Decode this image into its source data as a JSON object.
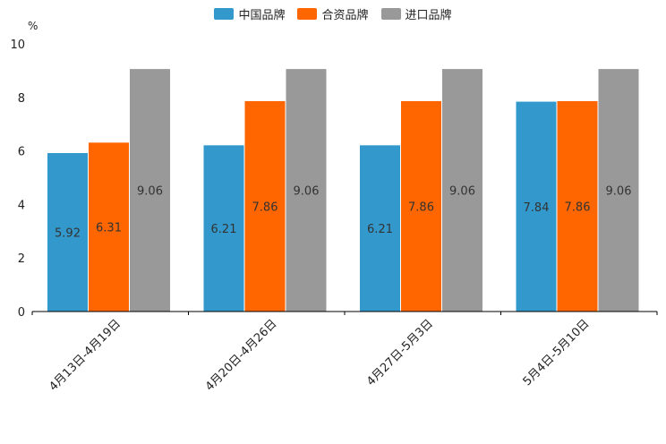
{
  "chart_data": {
    "type": "bar",
    "unit_label": "%",
    "categories": [
      "4月13日-4月19日",
      "4月20日-4月26日",
      "4月27日-5月3日",
      "5月4日-5月10日"
    ],
    "series": [
      {
        "name": "中国品牌",
        "color": "#3399cc",
        "values": [
          5.92,
          6.21,
          6.21,
          7.84
        ]
      },
      {
        "name": "合资品牌",
        "color": "#ff6600",
        "values": [
          6.31,
          7.86,
          7.86,
          7.86
        ]
      },
      {
        "name": "进口品牌",
        "color": "#999999",
        "values": [
          9.06,
          9.06,
          9.06,
          9.06
        ]
      }
    ],
    "ylim": [
      0,
      10
    ],
    "yticks": [
      0,
      2,
      4,
      6,
      8,
      10
    ],
    "legend_position": "top-center",
    "grid": false
  }
}
